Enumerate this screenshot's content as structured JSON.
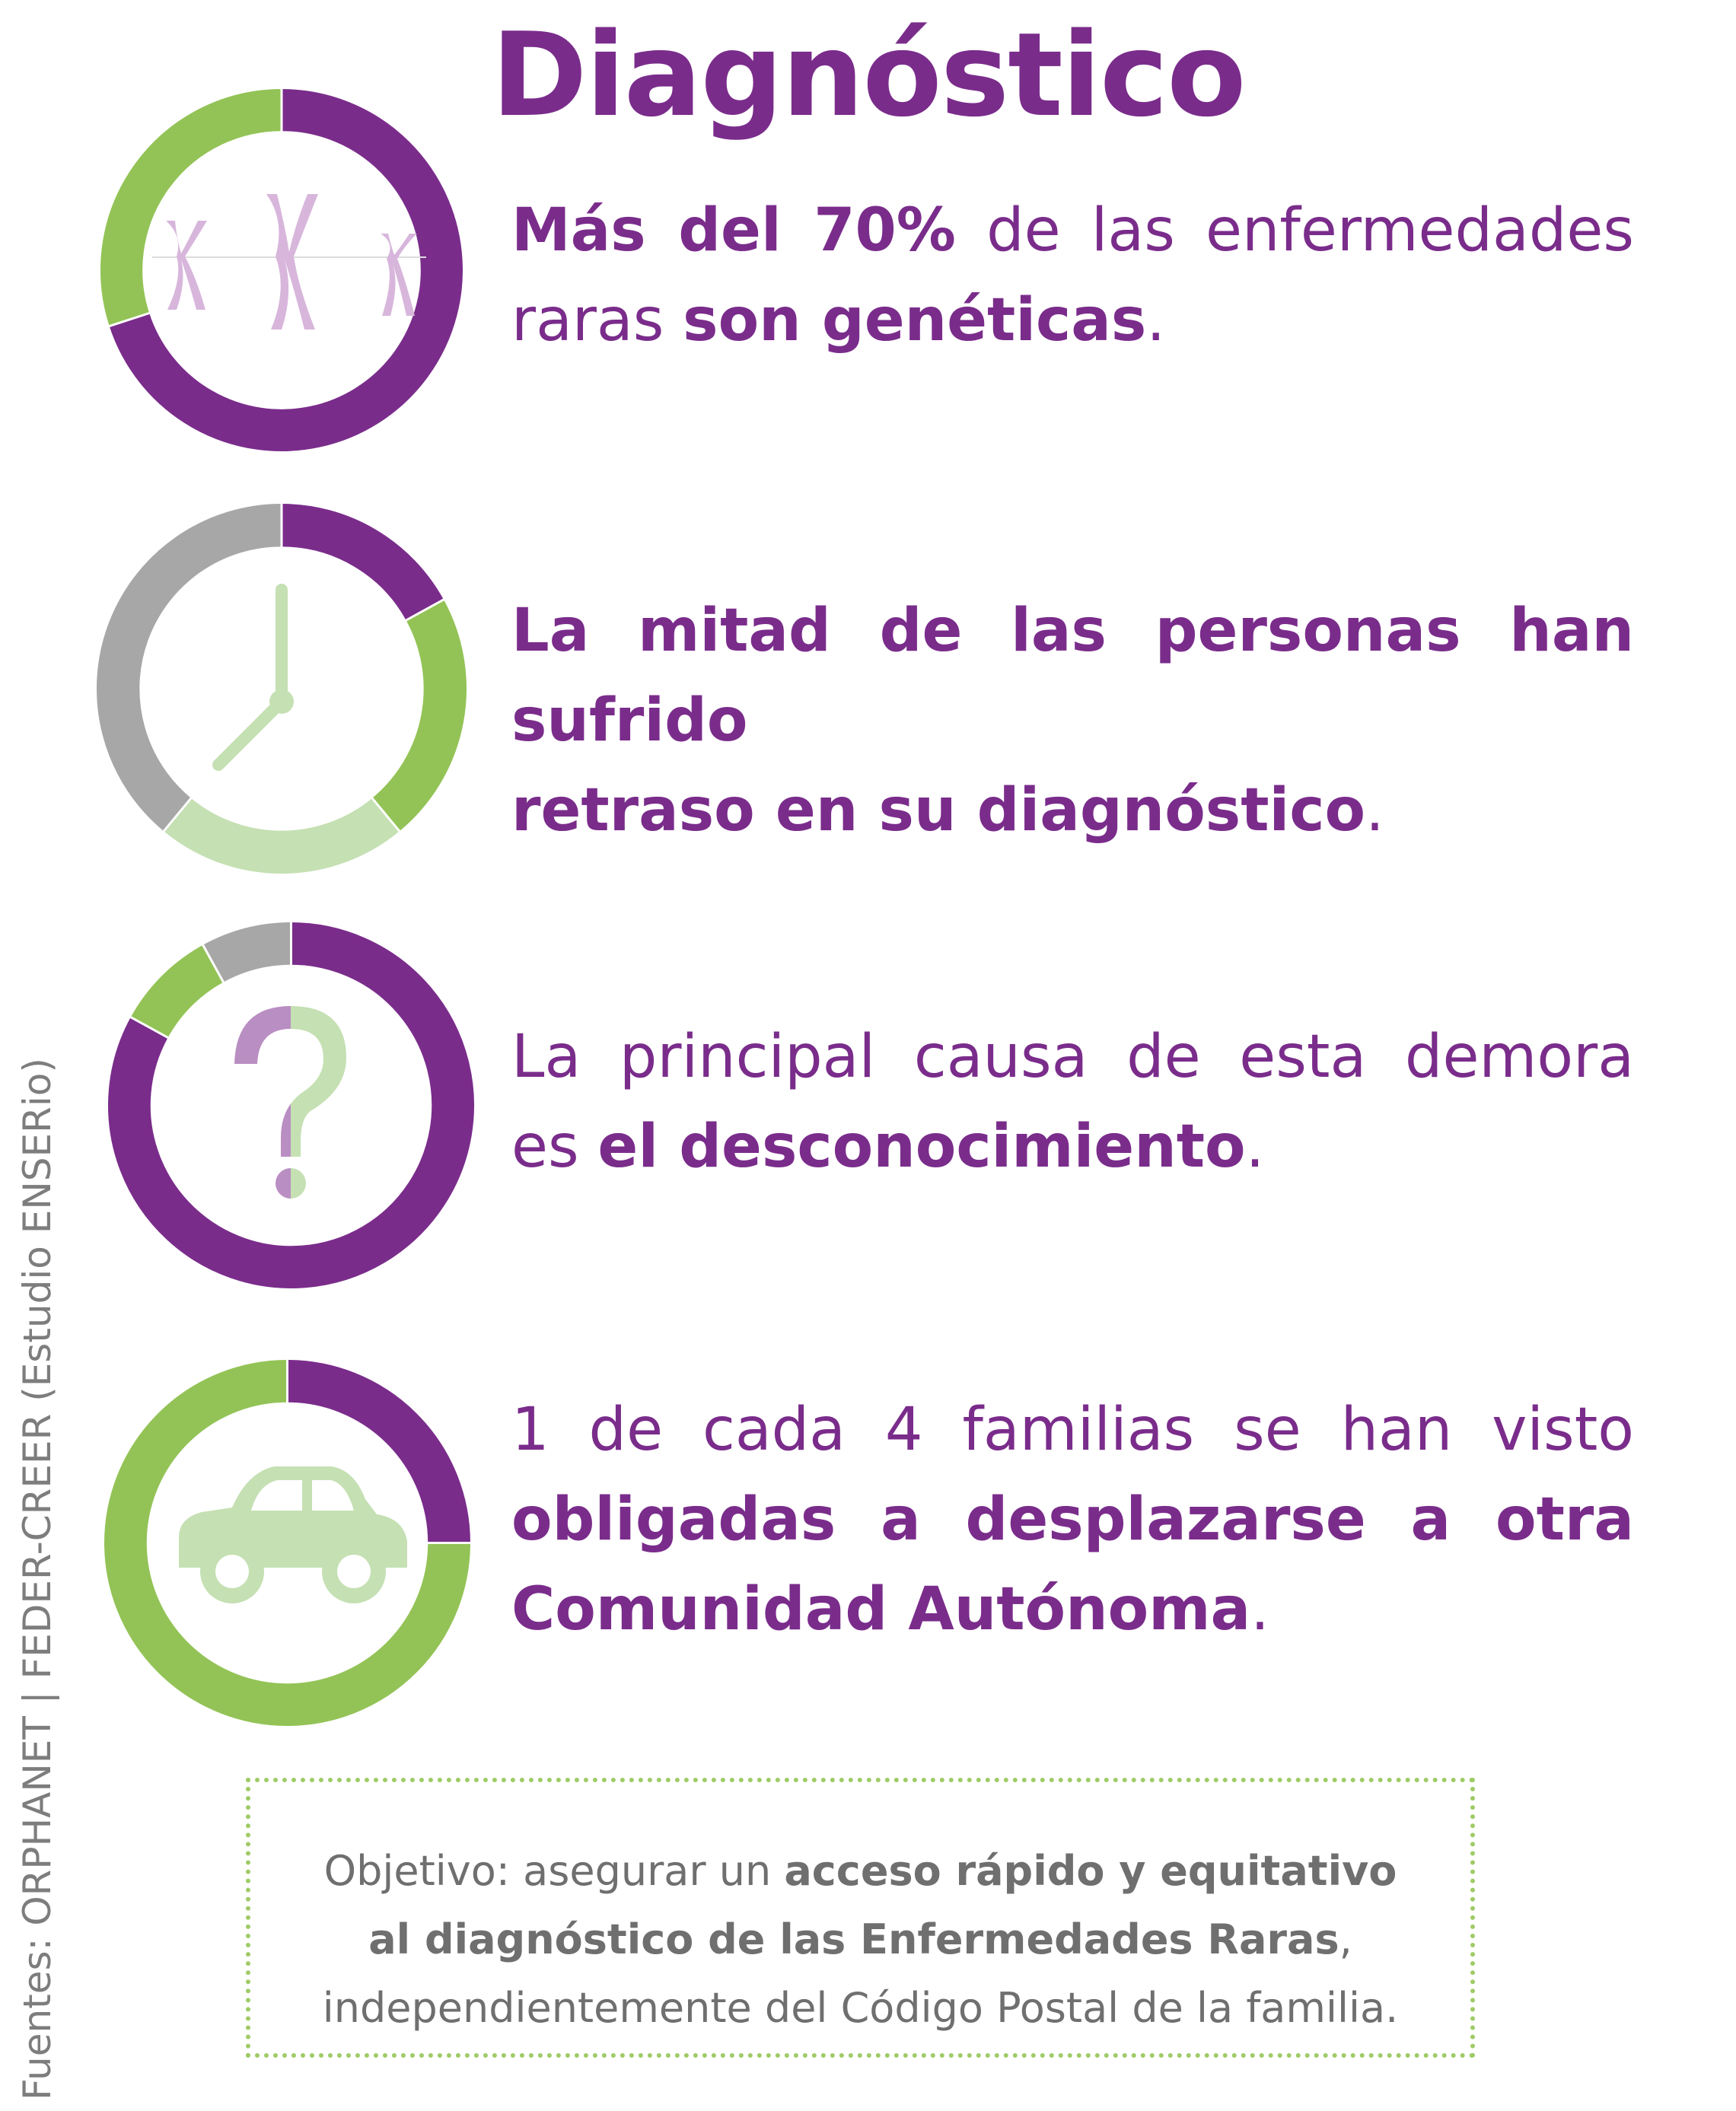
{
  "title": "Diagnóstico",
  "colors": {
    "purple": "#7a2c8b",
    "green": "#93c356",
    "light_green": "#c5e0b3",
    "gray": "#a7a7a8",
    "lilac": "#d8b6dc",
    "dot_green": "#9fcb67",
    "text_gray": "#6f6f6f"
  },
  "stats": [
    {
      "icon": "chromosomes-icon",
      "line1": [
        {
          "t": "Más del 70%",
          "b": true
        },
        {
          "t": " de las enfermedades",
          "b": false
        }
      ],
      "line2": [
        {
          "t": "raras ",
          "b": false
        },
        {
          "t": "son genéticas",
          "b": true
        },
        {
          "t": ".",
          "b": false
        }
      ]
    },
    {
      "icon": "clock-icon",
      "line1": [
        {
          "t": "La mitad de las personas han sufrido",
          "b": true
        }
      ],
      "line2": [
        {
          "t": "retraso en su diagnóstico",
          "b": true
        },
        {
          "t": ".",
          "b": false
        }
      ]
    },
    {
      "icon": "question-mark-icon",
      "line1": [
        {
          "t": "La principal causa de esta demora",
          "b": false
        }
      ],
      "line2": [
        {
          "t": "es ",
          "b": false
        },
        {
          "t": "el desconocimiento",
          "b": true
        },
        {
          "t": ".",
          "b": false
        }
      ]
    },
    {
      "icon": "car-icon",
      "line1": [
        {
          "t": "1 de cada 4 familias se han visto",
          "b": false
        }
      ],
      "line2": [
        {
          "t": "obligadas a desplazarse a otra",
          "b": true
        }
      ],
      "line3": [
        {
          "t": "Comunidad Autónoma",
          "b": true
        },
        {
          "t": ".",
          "b": false
        }
      ]
    }
  ],
  "donuts": [
    {
      "segments": [
        {
          "value": 70,
          "color": "#7a2c8b"
        },
        {
          "value": 30,
          "color": "#93c356"
        }
      ]
    },
    {
      "segments": [
        {
          "value": 17,
          "color": "#7a2c8b"
        },
        {
          "value": 22,
          "color": "#93c356"
        },
        {
          "value": 22,
          "color": "#c5e0b3"
        },
        {
          "value": 39,
          "color": "#a7a7a8"
        }
      ]
    },
    {
      "segments": [
        {
          "value": 83,
          "color": "#7a2c8b"
        },
        {
          "value": 9,
          "color": "#93c356"
        },
        {
          "value": 8,
          "color": "#a7a7a8"
        }
      ]
    },
    {
      "segments": [
        {
          "value": 25,
          "color": "#7a2c8b"
        },
        {
          "value": 75,
          "color": "#93c356"
        }
      ]
    }
  ],
  "goal": {
    "line1_a": "Objetivo: asegurar un ",
    "line1_b": "acceso rápido y equitativo",
    "line2_a": "al diagnóstico de las Enfermedades Raras",
    "line2_b": ",",
    "line3": "independientemente del Código Postal de la familia."
  },
  "source": "Fuentes: ORPHANET | FEDER-CREER (Estudio ENSERio)"
}
